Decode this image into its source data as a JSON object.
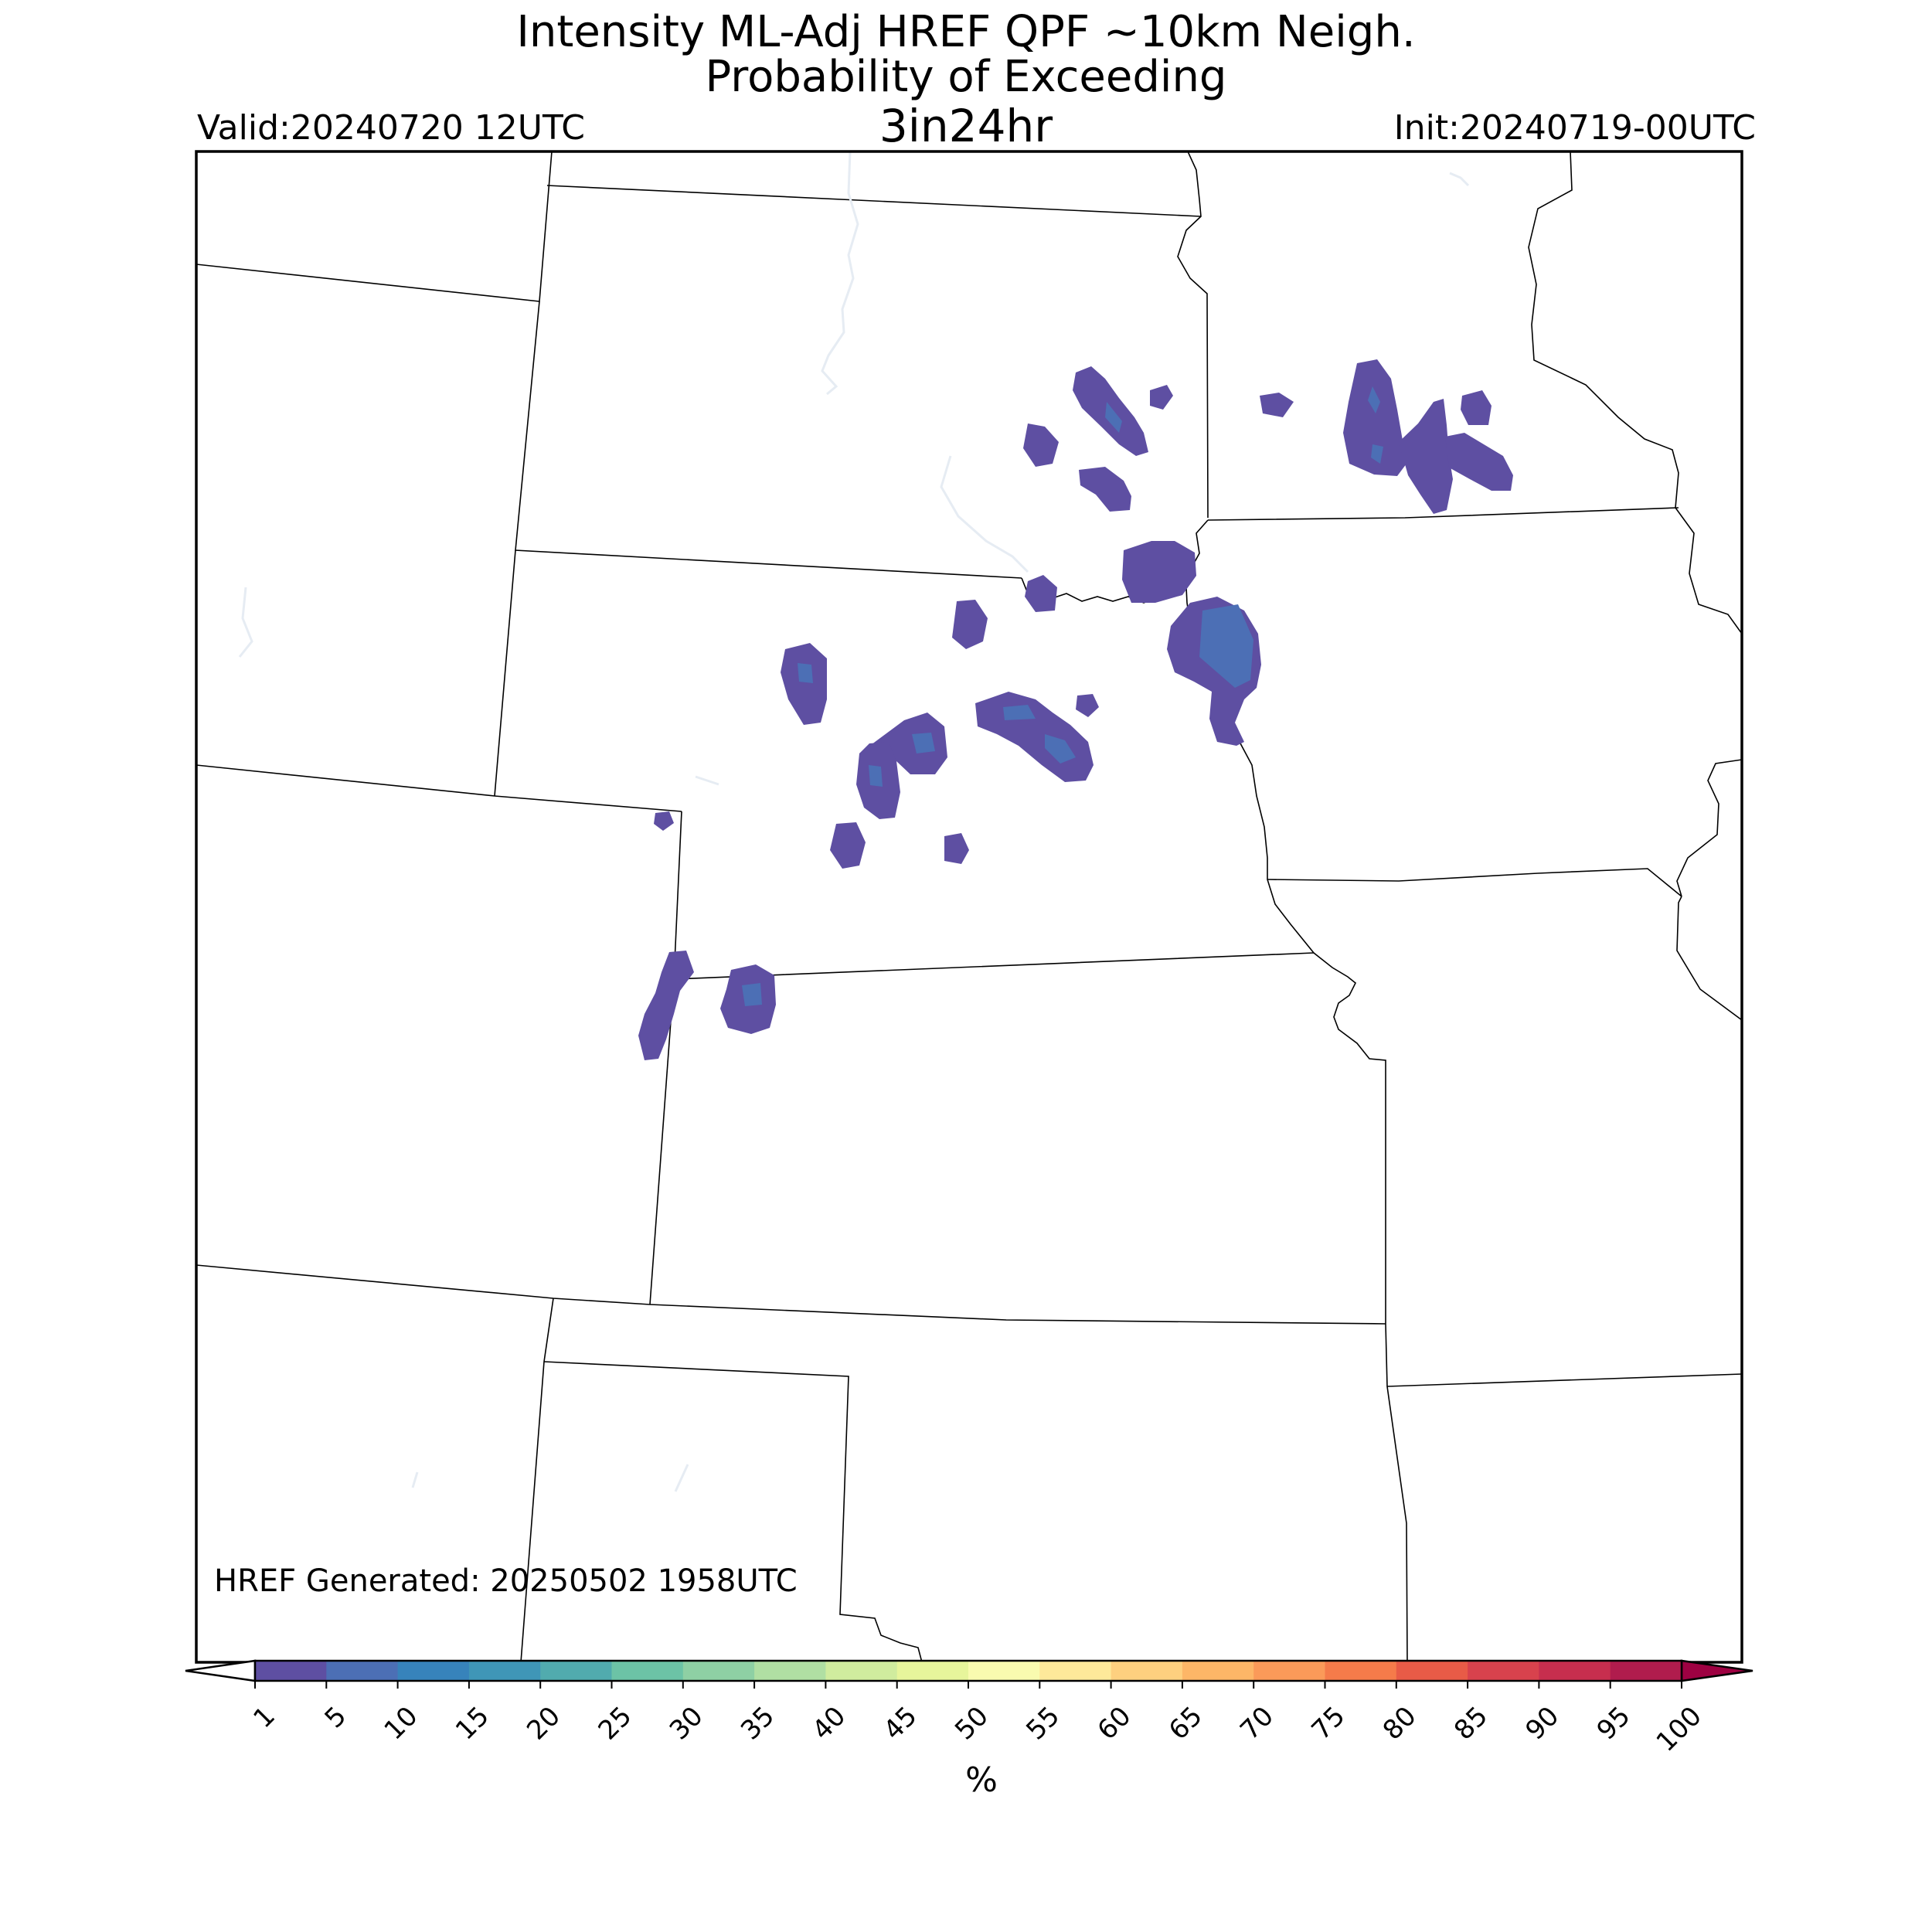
{
  "header": {
    "title_line1": "Intensity ML-Adj HREF QPF ~10km Neigh.",
    "title_line2": "Probability of Exceeding",
    "title_line3": "3in24hr",
    "valid": "Valid:20240720 12UTC",
    "init": "Init:20240719-00UTC"
  },
  "map": {
    "generated": "HREF Generated: 20250502 1958UTC"
  },
  "colorbar": {
    "unit": "%",
    "ticks": [
      "1",
      "5",
      "10",
      "15",
      "20",
      "25",
      "30",
      "35",
      "40",
      "45",
      "50",
      "55",
      "60",
      "65",
      "70",
      "75",
      "80",
      "85",
      "90",
      "95",
      "100"
    ],
    "colors": [
      "#5e4fa2",
      "#4c6fb5",
      "#3783bb",
      "#3f96b7",
      "#51abae",
      "#6cc3a6",
      "#8ed0a4",
      "#b0dfa3",
      "#d0ec9e",
      "#e7f59b",
      "#f9fbaf",
      "#fee99a",
      "#fed07f",
      "#fdb667",
      "#fb9a59",
      "#f57b4a",
      "#e85b47",
      "#d8424d",
      "#c72e4e",
      "#b01c4d",
      "#9e0142"
    ],
    "under_color": "#ffffff",
    "over_color": "#9e0142"
  }
}
